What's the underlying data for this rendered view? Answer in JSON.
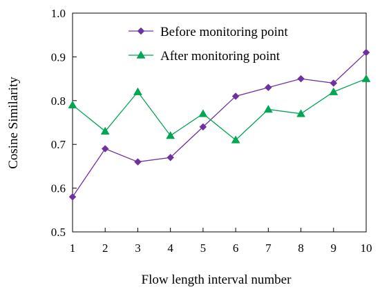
{
  "chart_data": {
    "type": "line",
    "title": "",
    "xlabel": "Flow length interval number",
    "ylabel": "Cosine Similarity",
    "x": [
      1,
      2,
      3,
      4,
      5,
      6,
      7,
      8,
      9,
      10
    ],
    "xlim": [
      1,
      10
    ],
    "ylim": [
      0.5,
      1.0
    ],
    "x_ticks": [
      "1",
      "2",
      "3",
      "4",
      "5",
      "6",
      "7",
      "8",
      "9",
      "10"
    ],
    "y_ticks": [
      "0.5",
      "0.6",
      "0.7",
      "0.8",
      "0.9",
      "1.0"
    ],
    "grid": false,
    "legend_position": "top-center",
    "series": [
      {
        "name": "Before monitoring point",
        "color": "#7030A0",
        "marker": "diamond",
        "values": [
          0.58,
          0.69,
          0.66,
          0.67,
          0.74,
          0.81,
          0.83,
          0.85,
          0.84,
          0.91
        ]
      },
      {
        "name": "After monitoring point",
        "color": "#00A651",
        "marker": "triangle",
        "values": [
          0.79,
          0.73,
          0.82,
          0.72,
          0.77,
          0.71,
          0.78,
          0.77,
          0.82,
          0.85
        ]
      }
    ]
  }
}
